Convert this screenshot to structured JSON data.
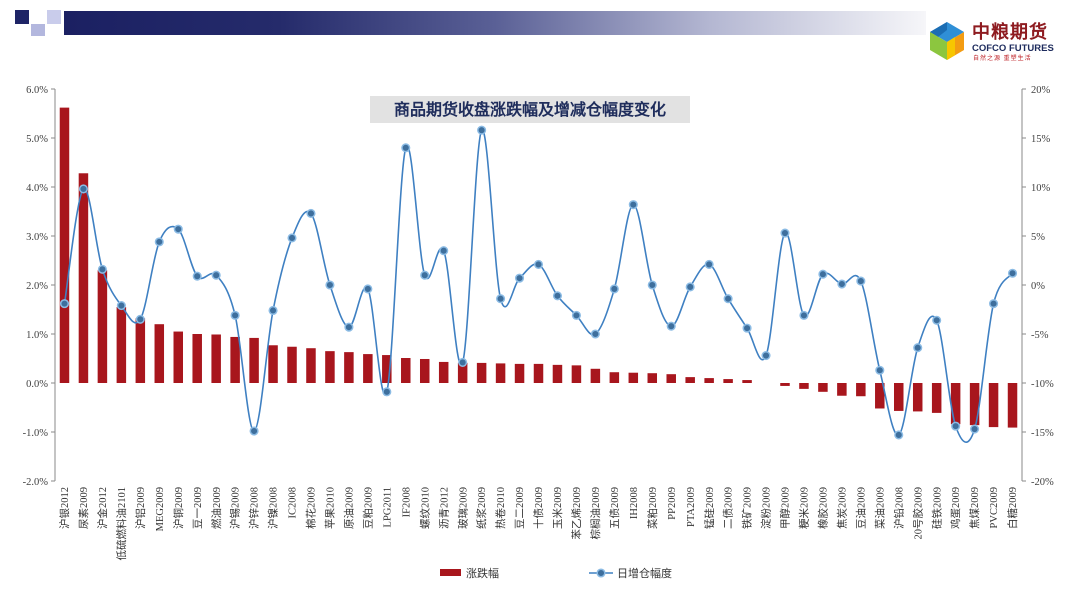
{
  "header": {
    "logo": {
      "icon": "cofco-cube-logo",
      "name_cn": "中粮期货",
      "name_en": "COFCO FUTURES",
      "slogan": "自然之源 重塑生活"
    }
  },
  "chart_data": {
    "type": "bar",
    "title": "商品期货收盘涨跌幅及增减仓幅度变化",
    "categories": [
      "沪银2012",
      "尿素2009",
      "沪金2012",
      "低硫燃料油2101",
      "沪铝2009",
      "MEG2009",
      "沪铜2009",
      "豆一2009",
      "燃油2009",
      "沪锡2009",
      "沪锌2008",
      "沪镍2008",
      "IC2008",
      "棉花2009",
      "苹果2010",
      "原油2009",
      "豆粕2009",
      "LPG2011",
      "IF2008",
      "螺纹2010",
      "沥青2012",
      "玻璃2009",
      "纸浆2009",
      "热卷2010",
      "豆二2009",
      "十债2009",
      "玉米2009",
      "苯乙烯2009",
      "棕榈油2009",
      "五债2009",
      "IH2008",
      "菜粕2009",
      "PP2009",
      "PTA2009",
      "锰硅2009",
      "二债2009",
      "铁矿2009",
      "淀粉2009",
      "甲醇2009",
      "粳米2009",
      "橡胶2009",
      "焦炭2009",
      "豆油2009",
      "菜油2009",
      "沪铅2008",
      "20号胶2009",
      "硅铁2009",
      "鸡蛋2009",
      "焦煤2009",
      "PVC2009",
      "白糖2009"
    ],
    "series": [
      {
        "name": "涨跌幅",
        "type": "bar",
        "axis": "left",
        "color": "#a8161d",
        "values": [
          5.62,
          4.28,
          2.3,
          1.55,
          1.32,
          1.2,
          1.05,
          1.0,
          0.99,
          0.94,
          0.92,
          0.77,
          0.74,
          0.71,
          0.65,
          0.63,
          0.59,
          0.57,
          0.51,
          0.49,
          0.43,
          0.41,
          0.41,
          0.4,
          0.39,
          0.39,
          0.37,
          0.36,
          0.29,
          0.22,
          0.21,
          0.2,
          0.18,
          0.12,
          0.1,
          0.08,
          0.06,
          0.0,
          -0.06,
          -0.12,
          -0.18,
          -0.26,
          -0.27,
          -0.52,
          -0.57,
          -0.58,
          -0.61,
          -0.84,
          -0.86,
          -0.9,
          -0.91
        ]
      },
      {
        "name": "日增仓幅度",
        "type": "line",
        "axis": "right",
        "smooth": true,
        "color": "#3f80c2",
        "marker_color": "#3e6f9d",
        "values": [
          -1.9,
          9.8,
          1.6,
          -2.1,
          -3.5,
          4.4,
          5.7,
          0.9,
          1.0,
          -3.1,
          -14.9,
          -2.6,
          4.8,
          7.3,
          0.0,
          -4.3,
          -0.4,
          -10.9,
          14.0,
          1.0,
          3.5,
          -7.9,
          15.8,
          -1.4,
          0.7,
          2.1,
          -1.1,
          -3.1,
          -5.0,
          -0.4,
          8.2,
          0.0,
          -4.2,
          -0.2,
          2.1,
          -1.4,
          -4.4,
          -7.2,
          5.3,
          -3.1,
          1.1,
          0.1,
          0.4,
          -8.7,
          -15.3,
          -6.4,
          -3.6,
          -14.4,
          -14.7,
          -1.9,
          1.2
        ]
      }
    ],
    "y_left": {
      "min": -2,
      "max": 6,
      "tick_labels": [
        "6.0%",
        "5.0%",
        "4.0%",
        "3.0%",
        "2.0%",
        "1.0%",
        "0.0%",
        "-1.0%",
        "-2.0%"
      ]
    },
    "y_right": {
      "min": -20,
      "max": 20,
      "tick_labels": [
        "20%",
        "15%",
        "10%",
        "5%",
        "0%",
        "-5%",
        "-10%",
        "-15%",
        "-20%"
      ]
    },
    "grid": false,
    "legend_position": "bottom"
  }
}
